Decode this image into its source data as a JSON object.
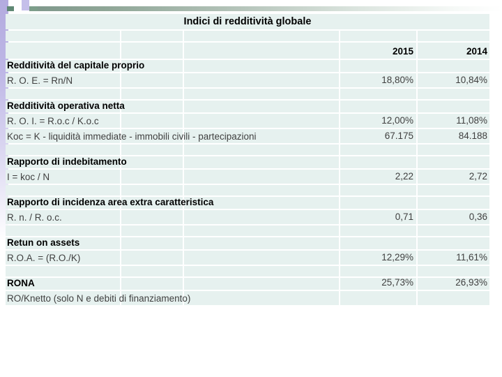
{
  "slide": {
    "title": "Indici di redditività globale",
    "columns": {
      "y2015": "2015",
      "y2014": "2014"
    },
    "rows": [
      {
        "type": "spacer"
      },
      {
        "type": "header"
      },
      {
        "type": "bold",
        "label": "Redditività del capitale proprio"
      },
      {
        "type": "formula",
        "label": "R. O. E. = Rn/N",
        "v1": "18,80%",
        "v2": "10,84%"
      },
      {
        "type": "spacer"
      },
      {
        "type": "bold",
        "label": "Redditività operativa netta"
      },
      {
        "type": "formula",
        "label": "R. O. I. = R.o.c / K.o.c",
        "v1": "12,00%",
        "v2": "11,08%"
      },
      {
        "type": "formula",
        "label": "Koc = K - liquidità immediate - immobili civili - partecipazioni",
        "v1": "67.175",
        "v2": "84.188"
      },
      {
        "type": "spacer"
      },
      {
        "type": "bold",
        "label": "Rapporto di indebitamento"
      },
      {
        "type": "formula",
        "label": "I = koc / N",
        "v1": "2,22",
        "v2": "2,72"
      },
      {
        "type": "spacer"
      },
      {
        "type": "bold",
        "label": "Rapporto di incidenza area extra caratteristica"
      },
      {
        "type": "formula",
        "label": "R. n. / R. o.c.",
        "v1": "0,71",
        "v2": "0,36"
      },
      {
        "type": "spacer"
      },
      {
        "type": "bold",
        "label": "Retun on assets"
      },
      {
        "type": "formula",
        "label": "R.O.A. = (R.O./K)",
        "v1": "12,29%",
        "v2": "11,61%"
      },
      {
        "type": "spacer"
      },
      {
        "type": "bold",
        "label": "RONA",
        "v1": "25,73%",
        "v2": "26,93%"
      },
      {
        "type": "formula",
        "label": "RO/Knetto (solo N e debiti di finanziamento)"
      }
    ],
    "colors": {
      "cell_bg": "#e6f1ef",
      "accent_lavender": "#c5bfea",
      "accent_green_dark": "#5f8874",
      "accent_green": "#7d9e8a",
      "top_bar_green": "#80998c"
    }
  }
}
